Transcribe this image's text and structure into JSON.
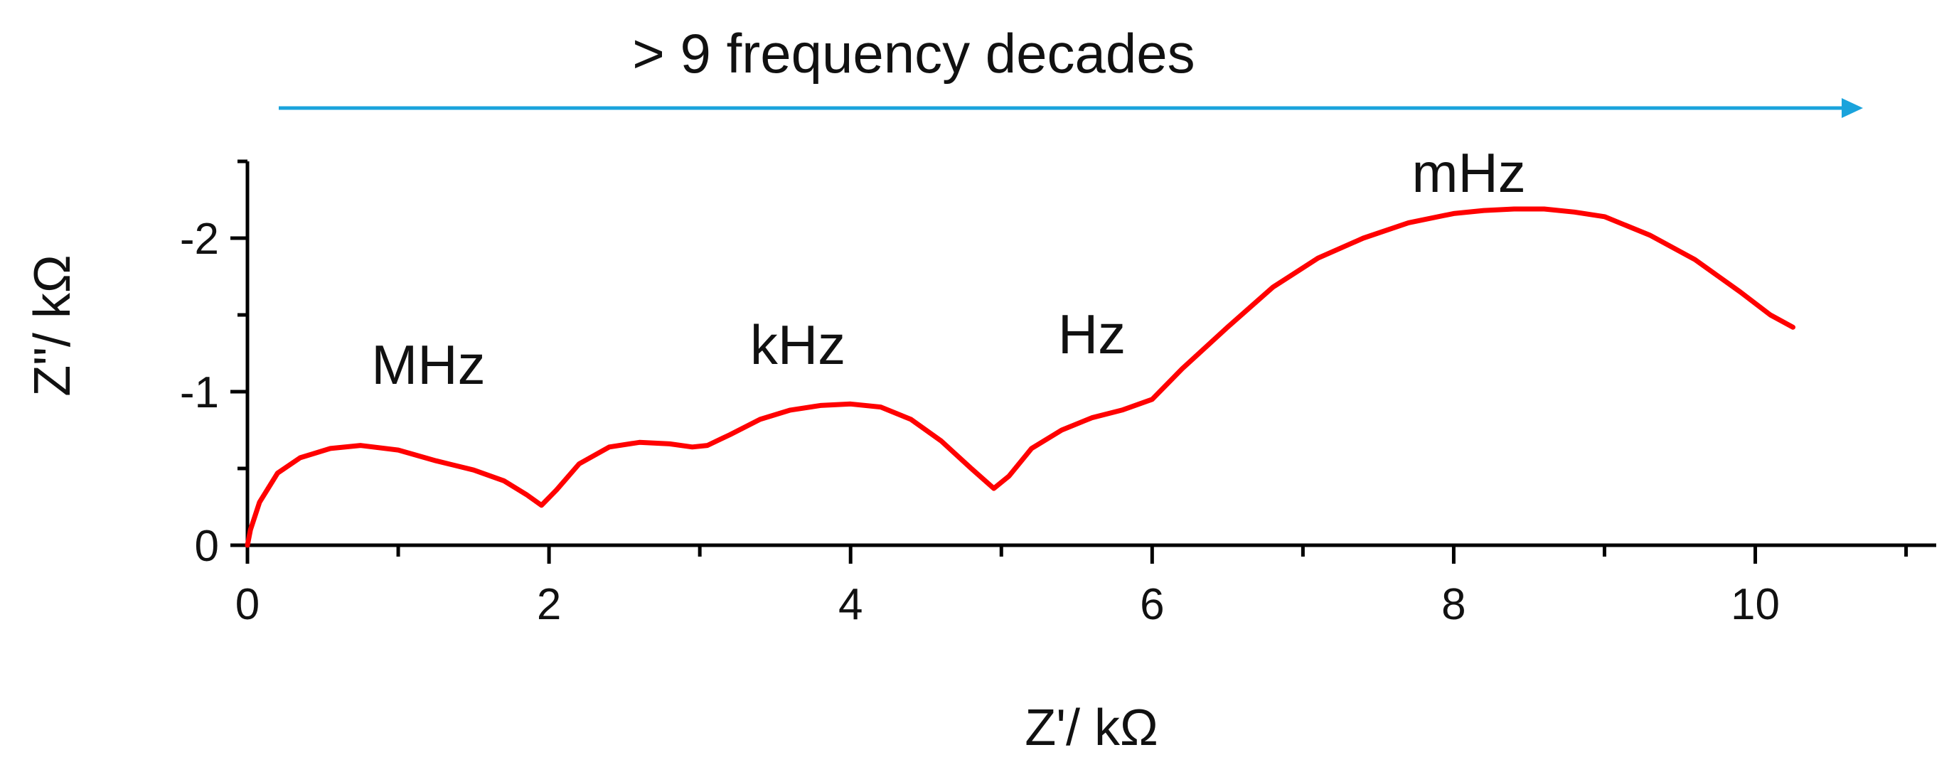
{
  "header": {
    "annotation": "> 9 frequency decades",
    "arrow_color": "#1aa3dc"
  },
  "chart_data": {
    "type": "line",
    "title": "",
    "xlabel": "Z'/ kΩ",
    "ylabel": "Z\"/ kΩ",
    "xlim": [
      0,
      11.2
    ],
    "ylim": [
      0,
      -2.5
    ],
    "x_major_ticks": [
      0,
      2,
      4,
      6,
      8,
      10
    ],
    "x_tick_labels": [
      "0",
      "2",
      "4",
      "6",
      "8",
      "10"
    ],
    "y_major_ticks": [
      0,
      -1,
      -2
    ],
    "y_tick_labels": [
      "0",
      "-1",
      "-2"
    ],
    "grid": false,
    "legend": "none",
    "line_color": "#ff0000",
    "series": [
      {
        "x": [
          0,
          0.02,
          0.08,
          0.2,
          0.35,
          0.55,
          0.75,
          1.0,
          1.25,
          1.5,
          1.7,
          1.85,
          1.95,
          2.05,
          2.2,
          2.4,
          2.6,
          2.8,
          2.95,
          3.05,
          3.2,
          3.4,
          3.6,
          3.8,
          4.0,
          4.2,
          4.4,
          4.6,
          4.8,
          4.95,
          5.05,
          5.2,
          5.4,
          5.6,
          5.8,
          6.0,
          6.2,
          6.5,
          6.8,
          7.1,
          7.4,
          7.7,
          8.0,
          8.2,
          8.4,
          8.6,
          8.8,
          9.0,
          9.3,
          9.6,
          9.9,
          10.1,
          10.25
        ],
        "y": [
          0,
          -0.1,
          -0.28,
          -0.47,
          -0.57,
          -0.63,
          -0.65,
          -0.62,
          -0.55,
          -0.49,
          -0.42,
          -0.33,
          -0.26,
          -0.36,
          -0.53,
          -0.64,
          -0.67,
          -0.66,
          -0.64,
          -0.65,
          -0.72,
          -0.82,
          -0.88,
          -0.91,
          -0.92,
          -0.9,
          -0.82,
          -0.68,
          -0.5,
          -0.37,
          -0.45,
          -0.63,
          -0.75,
          -0.83,
          -0.88,
          -0.95,
          -1.15,
          -1.42,
          -1.68,
          -1.87,
          -2.0,
          -2.1,
          -2.16,
          -2.18,
          -2.19,
          -2.19,
          -2.17,
          -2.14,
          -2.02,
          -1.86,
          -1.65,
          -1.5,
          -1.42
        ]
      }
    ],
    "annotations": [
      {
        "text": "MHz",
        "x": 1.2,
        "y": -1.05
      },
      {
        "text": "kHz",
        "x": 3.65,
        "y": -1.18
      },
      {
        "text": "Hz",
        "x": 5.6,
        "y": -1.25
      },
      {
        "text": "mHz",
        "x": 8.1,
        "y": -2.3
      }
    ]
  }
}
